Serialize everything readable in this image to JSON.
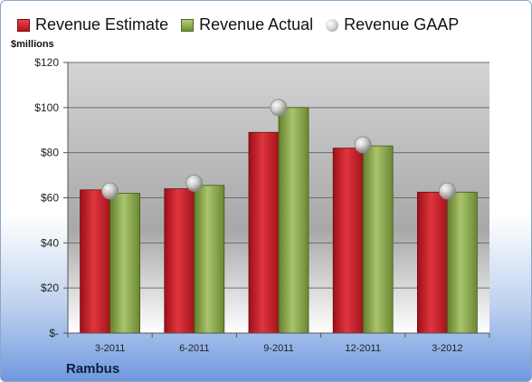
{
  "legend": {
    "estimate": "Revenue Estimate",
    "actual": "Revenue Actual",
    "gaap": "Revenue GAAP"
  },
  "unit_label": "$millions",
  "company": "Rambus",
  "colors": {
    "estimate": "#c8202a",
    "actual": "#8aa84a",
    "gaap": "#c8c8c8",
    "plot_top": "#d4d4d4",
    "plot_bottom": "#ffffff"
  },
  "chart_data": {
    "type": "bar",
    "categories": [
      "3-2011",
      "6-2011",
      "9-2011",
      "12-2011",
      "3-2012"
    ],
    "series": [
      {
        "name": "Revenue Estimate",
        "values": [
          63.5,
          64,
          89,
          82,
          62.5
        ]
      },
      {
        "name": "Revenue Actual",
        "values": [
          62,
          65.5,
          100,
          83,
          62.5
        ]
      },
      {
        "name": "Revenue GAAP",
        "values": [
          63,
          66.5,
          100,
          83.5,
          63
        ],
        "marker": "circle"
      }
    ],
    "yticks": [
      "$-",
      "$20",
      "$40",
      "$60",
      "$80",
      "$100",
      "$120"
    ],
    "ytick_values": [
      0,
      20,
      40,
      60,
      80,
      100,
      120
    ],
    "ylim": [
      0,
      120
    ],
    "grid": true,
    "legend_position": "top"
  }
}
